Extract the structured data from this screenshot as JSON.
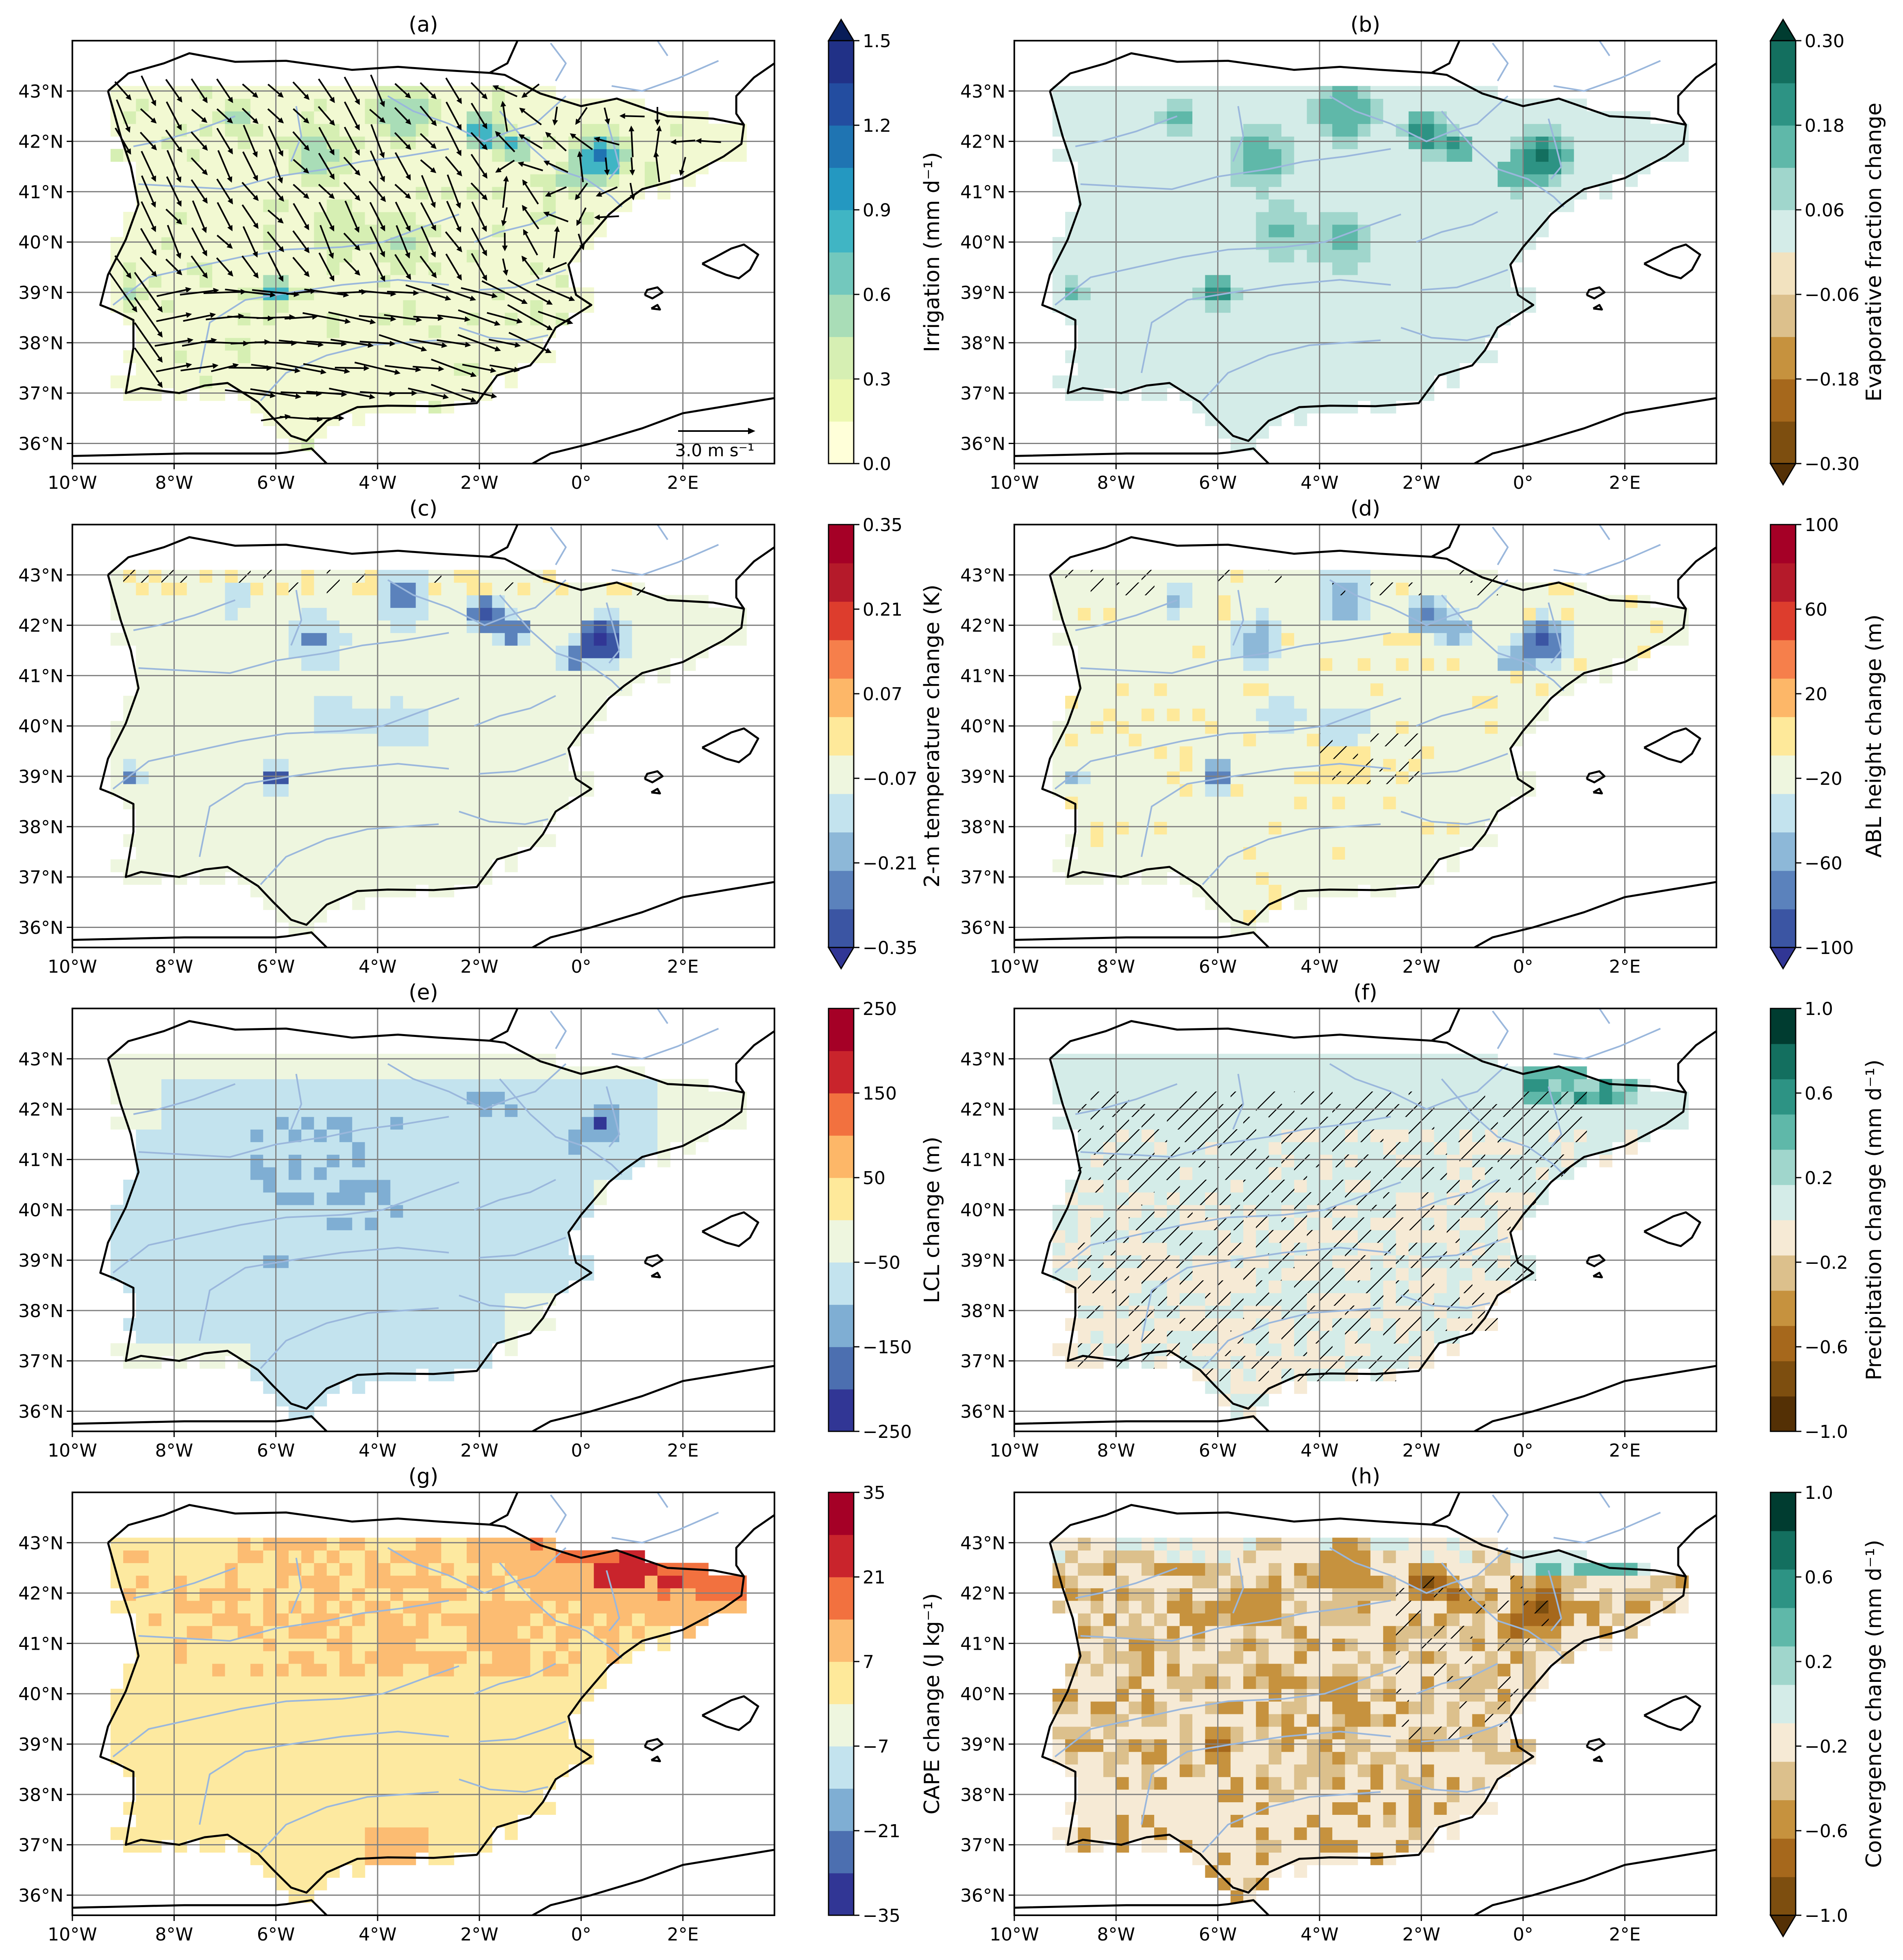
{
  "map_axes": {
    "lon_labels": [
      "10°W",
      "8°W",
      "6°W",
      "4°W",
      "2°W",
      "0°",
      "2°E"
    ],
    "lat_labels": [
      "43°N",
      "42°N",
      "41°N",
      "40°N",
      "39°N",
      "38°N",
      "37°N",
      "36°N"
    ],
    "lon_range": [
      -10,
      3.8
    ],
    "lat_range": [
      35.6,
      44.0
    ]
  },
  "panels": [
    {
      "id": "a",
      "title": "(a)",
      "cbar_label": "Irrigation (mm d⁻¹)",
      "ticks": [
        "1.5",
        "1.2",
        "0.9",
        "0.6",
        "0.3",
        "0.0"
      ],
      "extend": "max",
      "scale_label": "3.0 m s⁻¹"
    },
    {
      "id": "b",
      "title": "(b)",
      "cbar_label": "Evaporative fraction change",
      "ticks": [
        "0.30",
        "0.18",
        "0.06",
        "−0.06",
        "−0.18",
        "−0.30"
      ],
      "extend": "both"
    },
    {
      "id": "c",
      "title": "(c)",
      "cbar_label": "2-m temperature change (K)",
      "ticks": [
        "0.35",
        "0.21",
        "0.07",
        "−0.07",
        "−0.21",
        "−0.35"
      ],
      "extend": "min"
    },
    {
      "id": "d",
      "title": "(d)",
      "cbar_label": "ABL height change (m)",
      "ticks": [
        "100",
        "60",
        "20",
        "−20",
        "−60",
        "−100"
      ],
      "extend": "min"
    },
    {
      "id": "e",
      "title": "(e)",
      "cbar_label": "LCL change (m)",
      "ticks": [
        "250",
        "150",
        "50",
        "−50",
        "−150",
        "−250"
      ],
      "extend": "none"
    },
    {
      "id": "f",
      "title": "(f)",
      "cbar_label": "Precipitation change (mm d⁻¹)",
      "ticks": [
        "1.0",
        "0.6",
        "0.2",
        "−0.2",
        "−0.6",
        "−1.0"
      ],
      "extend": "none"
    },
    {
      "id": "g",
      "title": "(g)",
      "cbar_label": "CAPE change (J kg⁻¹)",
      "ticks": [
        "35",
        "21",
        "7",
        "−7",
        "−21",
        "−35"
      ],
      "extend": "none"
    },
    {
      "id": "h",
      "title": "(h)",
      "cbar_label": "Convergence change (mm d⁻¹)",
      "ticks": [
        "1.0",
        "0.6",
        "0.2",
        "−0.2",
        "−0.6",
        "−1.0"
      ],
      "extend": "min"
    }
  ],
  "colors": {
    "land_yellow_green": "#f2f9d2",
    "teal_light": "#d4ece8",
    "pale_green": "#eef6df",
    "light_blue": "#c3e3ee",
    "mid_blue": "#7faed3",
    "cape_yellow": "#fde9a0",
    "cape_orange": "#fcbc72",
    "cape_red": "#e65038",
    "pale_tan": "#f6ead5",
    "tan": "#dcc08c",
    "brown": "#b57f2a",
    "dark_teal": "#136f5f",
    "river": "#9ab7dc",
    "coast": "#000000",
    "grid": "#808080"
  }
}
